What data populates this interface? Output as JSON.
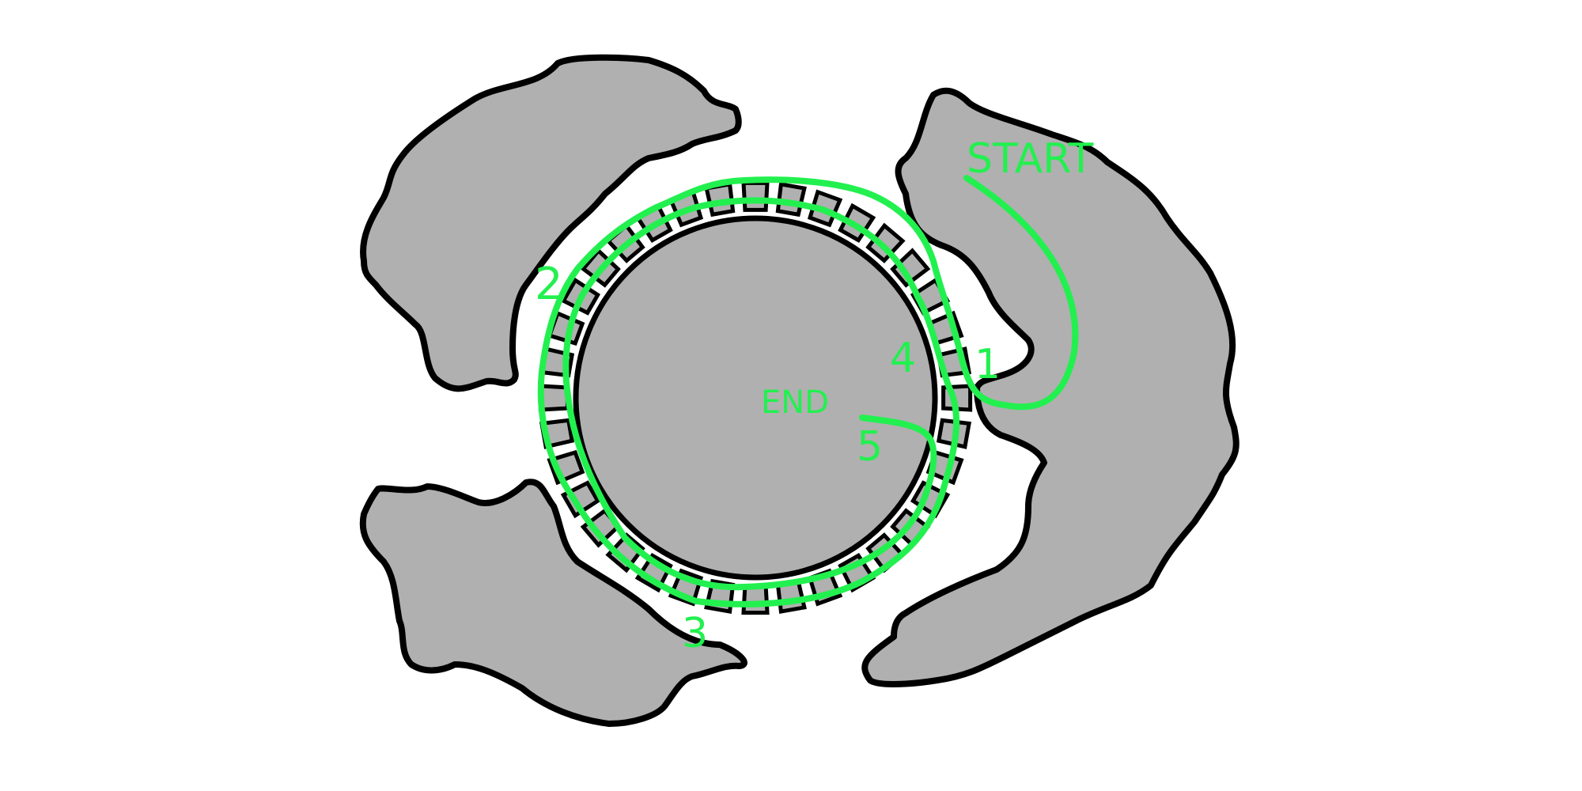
{
  "colors": {
    "rock": "#b0b0b0",
    "outline": "#000000",
    "route": "#22f04f",
    "background": "#ffffff"
  },
  "labels": {
    "start": "START",
    "end": "END",
    "step1": "1",
    "step2": "2",
    "step3": "3",
    "step4": "4",
    "step5": "5"
  }
}
